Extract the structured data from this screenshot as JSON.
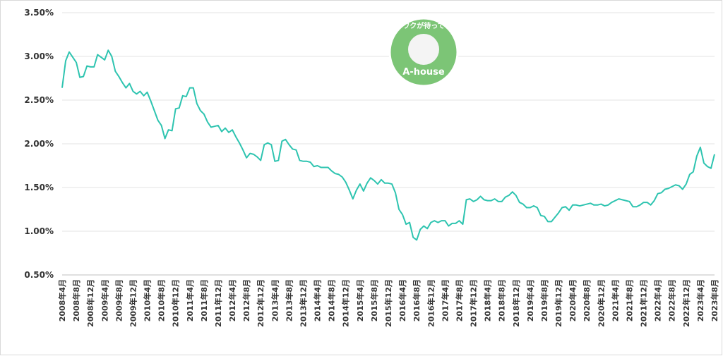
{
  "chart_data": {
    "type": "line",
    "color": "#2ec4b0",
    "grid": true,
    "ylim": [
      0.5,
      3.5
    ],
    "yticks": [
      {
        "value": 0.5,
        "label": "0.50%"
      },
      {
        "value": 1.0,
        "label": "1.00%"
      },
      {
        "value": 1.5,
        "label": "1.50%"
      },
      {
        "value": 2.0,
        "label": "2.00%"
      },
      {
        "value": 2.5,
        "label": "2.50%"
      },
      {
        "value": 3.0,
        "label": "3.00%"
      },
      {
        "value": 3.5,
        "label": "3.50%"
      }
    ],
    "categories": [
      "2008年4月",
      null,
      null,
      null,
      "2008年8月",
      null,
      null,
      null,
      "2008年12月",
      null,
      null,
      null,
      "2009年4月",
      null,
      null,
      null,
      "2009年8月",
      null,
      null,
      null,
      "2009年12月",
      null,
      null,
      null,
      "2010年4月",
      null,
      null,
      null,
      "2010年8月",
      null,
      null,
      null,
      "2010年12月",
      null,
      null,
      null,
      "2011年4月",
      null,
      null,
      null,
      "2011年8月",
      null,
      null,
      null,
      "2011年12月",
      null,
      null,
      null,
      "2012年4月",
      null,
      null,
      null,
      "2012年8月",
      null,
      null,
      null,
      "2012年12月",
      null,
      null,
      null,
      "2013年4月",
      null,
      null,
      null,
      "2013年8月",
      null,
      null,
      null,
      "2013年12月",
      null,
      null,
      null,
      "2014年4月",
      null,
      null,
      null,
      "2014年8月",
      null,
      null,
      null,
      "2014年12月",
      null,
      null,
      null,
      "2015年4月",
      null,
      null,
      null,
      "2015年8月",
      null,
      null,
      null,
      "2015年12月",
      null,
      null,
      null,
      "2016年4月",
      null,
      null,
      null,
      "2016年8月",
      null,
      null,
      null,
      "2016年12月",
      null,
      null,
      null,
      "2017年4月",
      null,
      null,
      null,
      "2017年8月",
      null,
      null,
      null,
      "2017年12月",
      null,
      null,
      null,
      "2018年4月",
      null,
      null,
      null,
      "2018年8月",
      null,
      null,
      null,
      "2018年12月",
      null,
      null,
      null,
      "2019年4月",
      null,
      null,
      null,
      "2019年8月",
      null,
      null,
      null,
      "2019年12月",
      null,
      null,
      null,
      "2020年4月",
      null,
      null,
      null,
      "2020年8月",
      null,
      null,
      null,
      "2020年12月",
      null,
      null,
      null,
      "2021年4月",
      null,
      null,
      null,
      "2021年8月",
      null,
      null,
      null,
      "2021年12月",
      null,
      null,
      null,
      "2022年4月",
      null,
      null,
      null,
      "2022年8月",
      null,
      null,
      null,
      "2022年12月",
      null,
      null,
      null,
      "2023年4月",
      null,
      null,
      null,
      "2023年8月"
    ],
    "values": [
      2.64,
      2.95,
      3.05,
      2.99,
      2.93,
      2.76,
      2.77,
      2.89,
      2.88,
      2.88,
      3.02,
      2.99,
      2.96,
      3.07,
      3.0,
      2.83,
      2.77,
      2.7,
      2.64,
      2.69,
      2.6,
      2.57,
      2.6,
      2.55,
      2.59,
      2.49,
      2.38,
      2.27,
      2.21,
      2.06,
      2.16,
      2.15,
      2.4,
      2.41,
      2.55,
      2.54,
      2.64,
      2.64,
      2.46,
      2.38,
      2.34,
      2.25,
      2.19,
      2.2,
      2.21,
      2.14,
      2.18,
      2.13,
      2.16,
      2.08,
      2.01,
      1.93,
      1.84,
      1.89,
      1.88,
      1.85,
      1.81,
      1.99,
      2.01,
      1.99,
      1.8,
      1.81,
      2.03,
      2.05,
      1.99,
      1.94,
      1.93,
      1.81,
      1.8,
      1.8,
      1.79,
      1.74,
      1.75,
      1.73,
      1.73,
      1.73,
      1.69,
      1.66,
      1.65,
      1.62,
      1.56,
      1.47,
      1.37,
      1.47,
      1.54,
      1.46,
      1.55,
      1.61,
      1.58,
      1.54,
      1.59,
      1.55,
      1.55,
      1.54,
      1.44,
      1.25,
      1.19,
      1.08,
      1.1,
      0.93,
      0.9,
      1.02,
      1.06,
      1.03,
      1.1,
      1.12,
      1.1,
      1.12,
      1.12,
      1.06,
      1.09,
      1.09,
      1.12,
      1.08,
      1.36,
      1.37,
      1.34,
      1.36,
      1.4,
      1.36,
      1.35,
      1.35,
      1.37,
      1.34,
      1.34,
      1.39,
      1.41,
      1.45,
      1.41,
      1.33,
      1.31,
      1.27,
      1.27,
      1.29,
      1.27,
      1.18,
      1.17,
      1.11,
      1.11,
      1.16,
      1.21,
      1.27,
      1.28,
      1.24,
      1.3,
      1.3,
      1.29,
      1.3,
      1.31,
      1.32,
      1.3,
      1.3,
      1.31,
      1.29,
      1.3,
      1.33,
      1.35,
      1.37,
      1.36,
      1.35,
      1.34,
      1.28,
      1.28,
      1.3,
      1.33,
      1.33,
      1.3,
      1.35,
      1.43,
      1.44,
      1.48,
      1.49,
      1.51,
      1.53,
      1.52,
      1.48,
      1.54,
      1.65,
      1.68,
      1.86,
      1.96,
      1.78,
      1.74,
      1.72,
      1.88
    ],
    "logo": {
      "tagline": "ワクワクが待っている",
      "brand": "A-house"
    }
  }
}
